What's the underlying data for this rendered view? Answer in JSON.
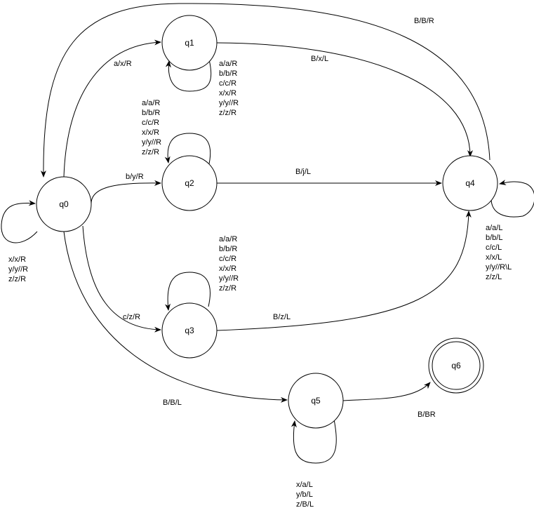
{
  "states": {
    "q0": "q0",
    "q1": "q1",
    "q2": "q2",
    "q3": "q3",
    "q4": "q4",
    "q5": "q5",
    "q6": "q6"
  },
  "transitions": {
    "q0_q1": "a/x/R",
    "q0_q2": "b/y/R",
    "q0_q3": "c/z/R",
    "q0_q5": "B/B/L",
    "q1_q4": "B/x/L",
    "q2_q4": "B/j/L",
    "q3_q4": "B/z/L",
    "q4_q0": "B/B/R",
    "q5_q6": "B/BR",
    "q0_loop": [
      "x/x/R",
      "y/y//R",
      "z/z/R"
    ],
    "q1_loop": [
      "a/a/R",
      "b/b/R",
      "c/c/R",
      "x/x/R",
      "y/y//R",
      "z/z/R"
    ],
    "q2_loop": [
      "a/a/R",
      "b/b/R",
      "c/c/R",
      "x/x/R",
      "y/y//R",
      "z/z/R"
    ],
    "q3_loop": [
      "a/a/R",
      "b/b/R",
      "c/c/R",
      "x/x/R",
      "y/y//R",
      "z/z/R"
    ],
    "q4_loop": [
      "a/a/L",
      "b/b/L",
      "c/c/L",
      "x/x/L",
      "y/y//R\\L",
      "z/z/L"
    ],
    "q5_loop": [
      "x/a/L",
      "y/b/L",
      "z/B/L"
    ]
  }
}
